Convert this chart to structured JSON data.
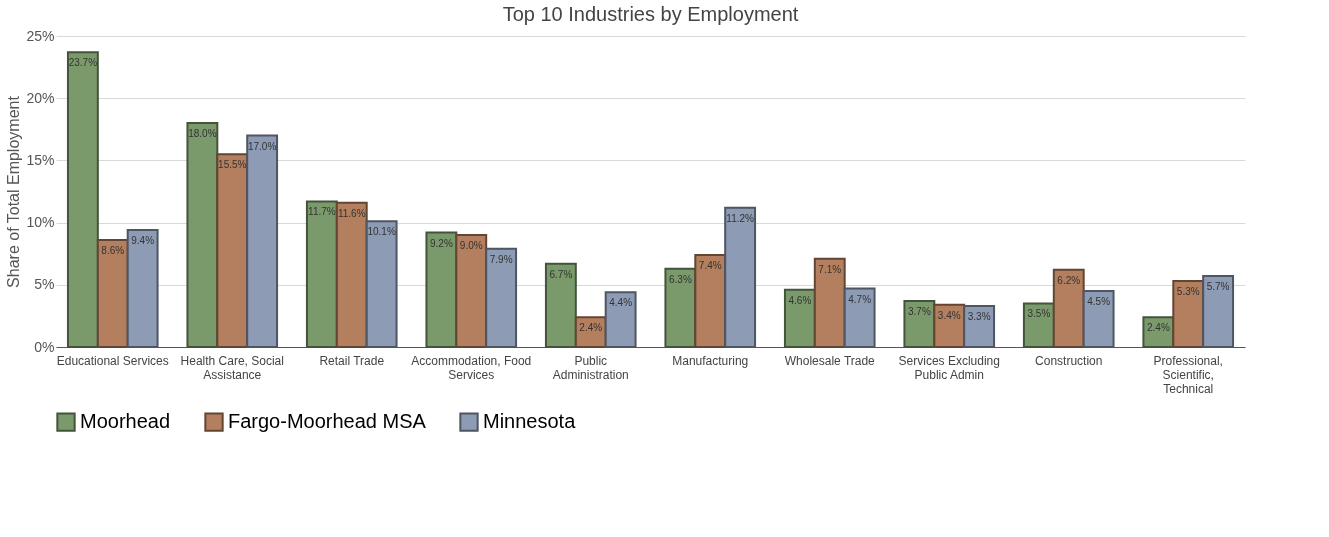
{
  "chart_data": {
    "type": "bar",
    "title": "Top 10 Industries by Employment",
    "ylabel": "Share of Total Employment",
    "categories": [
      "Educational Services",
      "Health Care, Social Assistance",
      "Retail Trade",
      "Accommodation, Food Services",
      "Public Administration",
      "Manufacturing",
      "Wholesale Trade",
      "Services Excluding Public Admin",
      "Construction",
      "Professional, Scientific, Technical"
    ],
    "series": [
      {
        "name": "Moorhead",
        "color": "#7b9a6c",
        "values": [
          23.7,
          18.0,
          11.7,
          9.2,
          6.7,
          6.3,
          4.6,
          3.7,
          3.5,
          2.4
        ],
        "value_labels": [
          "23.7%",
          "18.0%",
          "11.7%",
          "9.2%",
          "6.7%",
          "6.3%",
          "4.6%",
          "3.7%",
          "3.5%",
          "2.4%"
        ]
      },
      {
        "name": "Fargo-Moorhead MSA",
        "color": "#b47f5e",
        "values": [
          8.6,
          15.5,
          11.6,
          9.0,
          2.4,
          7.4,
          7.1,
          3.4,
          6.2,
          5.3
        ],
        "value_labels": [
          "8.6%",
          "15.5%",
          "11.6%",
          "9.0%",
          "2.4%",
          "7.4%",
          "7.1%",
          "3.4%",
          "6.2%",
          "5.3%"
        ]
      },
      {
        "name": "Minnesota",
        "color": "#8e9bb5",
        "values": [
          9.4,
          17.0,
          10.1,
          7.9,
          4.4,
          11.2,
          4.7,
          3.3,
          4.5,
          5.7
        ],
        "value_labels": [
          "9.4%",
          "17.0%",
          "10.1%",
          "7.9%",
          "4.4%",
          "11.2%",
          "4.7%",
          "3.3%",
          "4.5%",
          "5.7%"
        ]
      }
    ],
    "ylim": [
      0,
      25
    ],
    "yticks": [
      {
        "value": 0,
        "label": "0%"
      },
      {
        "value": 5,
        "label": "5%"
      },
      {
        "value": 10,
        "label": "10%"
      },
      {
        "value": 15,
        "label": "15%"
      },
      {
        "value": 20,
        "label": "20%"
      },
      {
        "value": 25,
        "label": "25%"
      }
    ],
    "grid": "y",
    "legend": "bottom"
  }
}
